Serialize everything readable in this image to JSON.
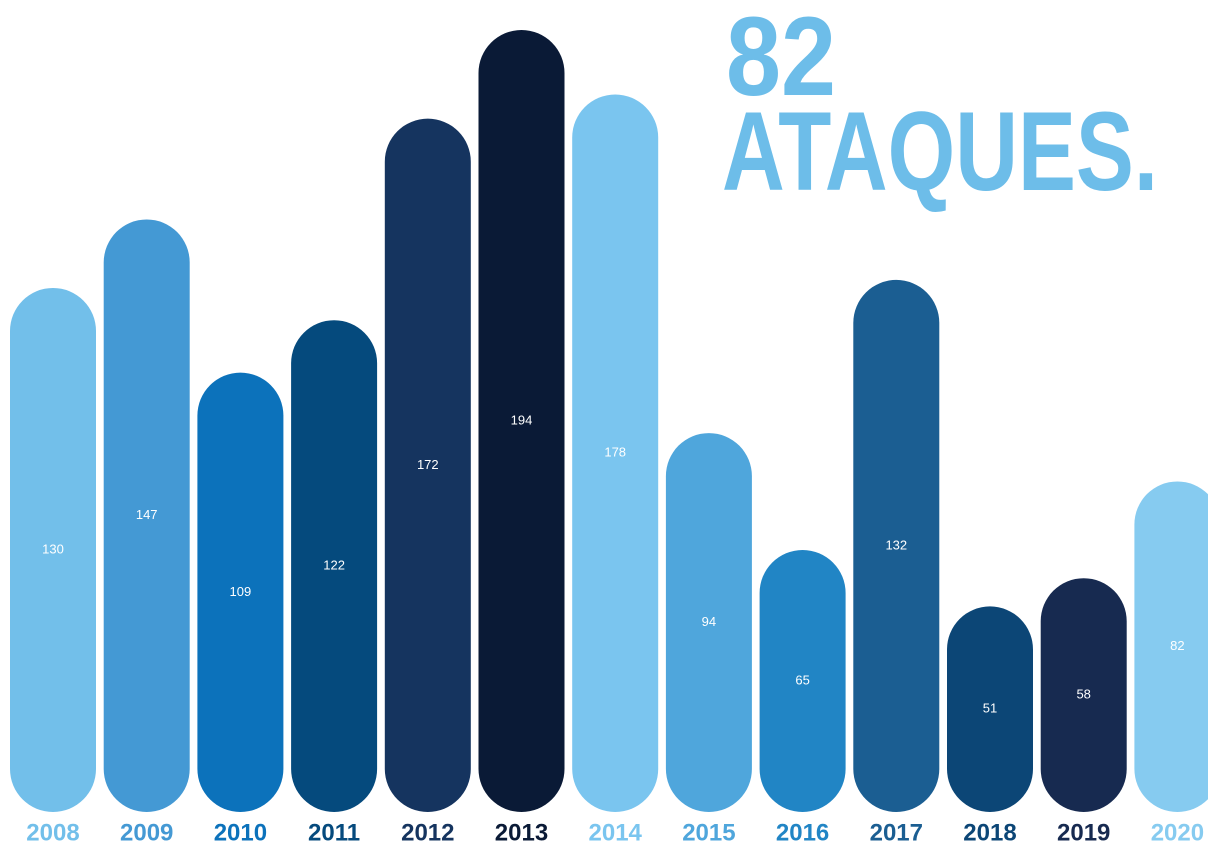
{
  "chart_data": {
    "type": "bar",
    "title": [
      "82",
      "ATAQUES."
    ],
    "categories": [
      "2008",
      "2009",
      "2010",
      "2011",
      "2012",
      "2013",
      "2014",
      "2015",
      "2016",
      "2017",
      "2018",
      "2019",
      "2020"
    ],
    "values": [
      130,
      147,
      109,
      122,
      172,
      194,
      178,
      94,
      65,
      132,
      51,
      58,
      82
    ],
    "colors": [
      "#72bfea",
      "#4499d4",
      "#0c72bb",
      "#054a7d",
      "#15345f",
      "#0a1a36",
      "#7ac5ef",
      "#4fa6dc",
      "#2185c5",
      "#1b5e92",
      "#0c4676",
      "#172a50",
      "#86cbf0"
    ],
    "title_color": "#6dbde9"
  }
}
